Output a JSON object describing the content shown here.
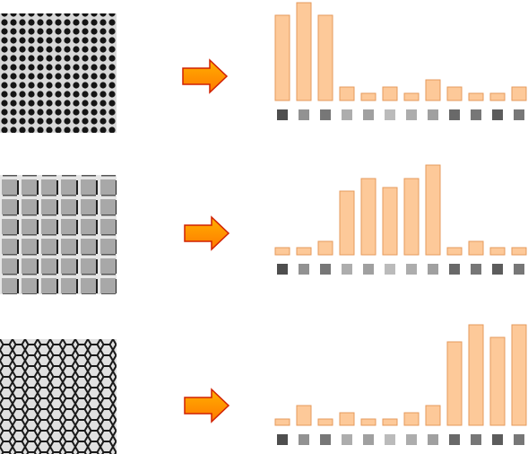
{
  "chart_data": [
    {
      "type": "bar",
      "color": "#fdc999",
      "edgecolor": "#e59a5c",
      "values": [
        95,
        109,
        95,
        15,
        8,
        15,
        8,
        23,
        15,
        8,
        8,
        15
      ]
    },
    {
      "type": "bar",
      "color": "#fdc999",
      "edgecolor": "#e59a5c",
      "values": [
        8,
        8,
        15,
        71,
        85,
        75,
        85,
        100,
        8,
        15,
        8,
        8
      ]
    },
    {
      "type": "bar",
      "color": "#fdc999",
      "edgecolor": "#e59a5c",
      "values": [
        7,
        22,
        7,
        14,
        7,
        7,
        14,
        22,
        93,
        112,
        98,
        112
      ]
    }
  ]
}
